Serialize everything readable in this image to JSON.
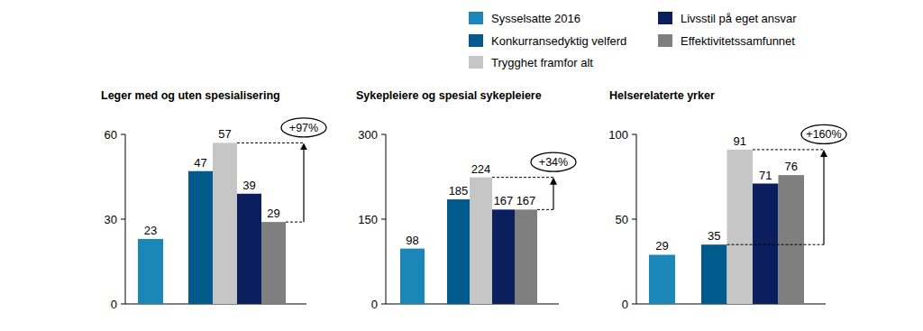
{
  "chart_data": [
    {
      "type": "bar",
      "title": "Leger med og uten spesialisering",
      "categories": [
        null
      ],
      "series": [
        {
          "name": "Sysselsatte 2016",
          "color": "#1a87b8",
          "values": [
            23
          ]
        },
        {
          "name": "Konkurransedyktig velferd",
          "color": "#005a8c",
          "values": [
            47
          ]
        },
        {
          "name": "Trygghet framfor alt",
          "color": "#c6c6c6",
          "values": [
            57
          ]
        },
        {
          "name": "Livsstil på eget ansvar",
          "color": "#0b1f5e",
          "values": [
            39
          ]
        },
        {
          "name": "Effektivitetssamfunnet",
          "color": "#7f7f7f",
          "values": [
            29
          ]
        }
      ],
      "ylim": [
        0,
        60
      ],
      "yticks": [
        0,
        30,
        60
      ],
      "grid": false,
      "data_labels": true,
      "legend": "top-right",
      "annotations": [
        {
          "text": "+97%",
          "from": 29,
          "to": 57
        }
      ]
    },
    {
      "type": "bar",
      "title": "Sykepleiere og spesial sykepleiere",
      "categories": [
        null
      ],
      "series": [
        {
          "name": "Sysselsatte 2016",
          "color": "#1a87b8",
          "values": [
            98
          ]
        },
        {
          "name": "Konkurransedyktig velferd",
          "color": "#005a8c",
          "values": [
            185
          ]
        },
        {
          "name": "Trygghet framfor alt",
          "color": "#c6c6c6",
          "values": [
            224
          ]
        },
        {
          "name": "Livsstil på eget ansvar",
          "color": "#0b1f5e",
          "values": [
            167
          ]
        },
        {
          "name": "Effektivitetssamfunnet",
          "color": "#7f7f7f",
          "values": [
            167
          ]
        }
      ],
      "ylim": [
        0,
        300
      ],
      "yticks": [
        0,
        150,
        300
      ],
      "grid": false,
      "data_labels": true,
      "annotations": [
        {
          "text": "+34%",
          "from": 167,
          "to": 224
        }
      ]
    },
    {
      "type": "bar",
      "title": "Helserelaterte yrker",
      "categories": [
        null
      ],
      "series": [
        {
          "name": "Sysselsatte 2016",
          "color": "#1a87b8",
          "values": [
            29
          ]
        },
        {
          "name": "Konkurransedyktig velferd",
          "color": "#005a8c",
          "values": [
            35
          ]
        },
        {
          "name": "Trygghet framfor alt",
          "color": "#c6c6c6",
          "values": [
            91
          ]
        },
        {
          "name": "Livsstil på eget ansvar",
          "color": "#0b1f5e",
          "values": [
            71
          ]
        },
        {
          "name": "Effektivitetssamfunnet",
          "color": "#7f7f7f",
          "values": [
            76
          ]
        }
      ],
      "ylim": [
        0,
        100
      ],
      "yticks": [
        0,
        50,
        100
      ],
      "grid": false,
      "data_labels": true,
      "annotations": [
        {
          "text": "+160%",
          "from": 35,
          "to": 91
        }
      ]
    }
  ]
}
